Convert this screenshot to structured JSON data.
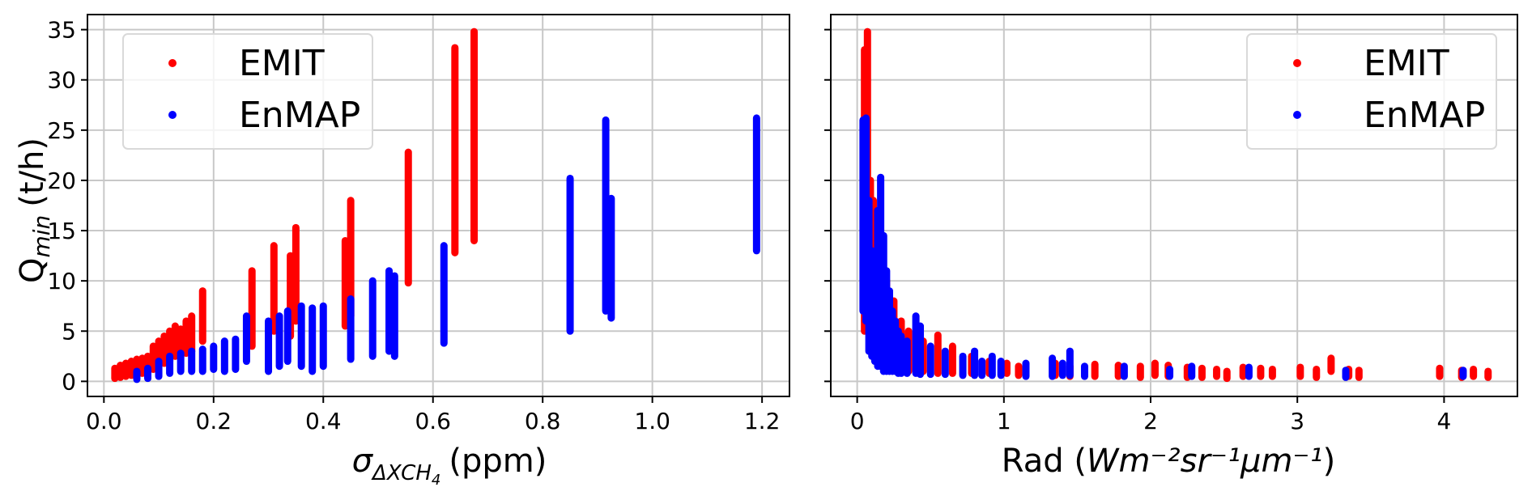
{
  "colors": {
    "emit": "#ff0000",
    "enmap": "#0000ff",
    "grid": "#c8c8c8",
    "frame": "#000000"
  },
  "chart_data": [
    {
      "type": "scatter",
      "ylabel_main": "Q",
      "ylabel_sub": "min",
      "ylabel_unit": "(t/h)",
      "xlabel_main": "σ",
      "xlabel_sub": "ΔXCH",
      "xlabel_subsub": "4",
      "xlabel_unit": "(ppm)",
      "xlim": [
        -0.03,
        1.25
      ],
      "ylim": [
        -1.5,
        36.5
      ],
      "xticks": [
        0.0,
        0.2,
        0.4,
        0.6,
        0.8,
        1.0,
        1.2
      ],
      "xtick_labels": [
        "0.0",
        "0.2",
        "0.4",
        "0.6",
        "0.8",
        "1.0",
        "1.2"
      ],
      "yticks": [
        0,
        5,
        10,
        15,
        20,
        25,
        30,
        35
      ],
      "ytick_labels": [
        "0",
        "5",
        "10",
        "15",
        "20",
        "25",
        "30",
        "35"
      ],
      "grid": true,
      "legend": "upper left",
      "series": [
        {
          "name": "EMIT",
          "segments": [
            [
              0.02,
              0.3,
              1.3
            ],
            [
              0.03,
              0.4,
              1.6
            ],
            [
              0.04,
              0.5,
              1.8
            ],
            [
              0.05,
              0.6,
              2.0
            ],
            [
              0.06,
              0.7,
              2.2
            ],
            [
              0.07,
              0.8,
              2.3
            ],
            [
              0.08,
              1.0,
              2.5
            ],
            [
              0.09,
              1.2,
              3.5
            ],
            [
              0.1,
              1.5,
              4.0
            ],
            [
              0.11,
              1.8,
              4.5
            ],
            [
              0.12,
              2.0,
              5.0
            ],
            [
              0.13,
              2.5,
              5.5
            ],
            [
              0.14,
              2.5,
              5.2
            ],
            [
              0.15,
              2.8,
              6.0
            ],
            [
              0.16,
              3.0,
              6.5
            ],
            [
              0.18,
              4.0,
              9.0
            ],
            [
              0.27,
              3.5,
              11.0
            ],
            [
              0.31,
              5.0,
              13.5
            ],
            [
              0.34,
              4.5,
              12.5
            ],
            [
              0.35,
              6.0,
              15.3
            ],
            [
              0.44,
              5.5,
              14.0
            ],
            [
              0.45,
              6.5,
              18.0
            ],
            [
              0.555,
              9.8,
              22.8
            ],
            [
              0.64,
              12.8,
              33.2
            ],
            [
              0.675,
              14.0,
              34.8
            ]
          ]
        },
        {
          "name": "EnMAP",
          "segments": [
            [
              0.06,
              0.2,
              1.0
            ],
            [
              0.08,
              0.3,
              1.3
            ],
            [
              0.1,
              0.5,
              2.0
            ],
            [
              0.12,
              0.8,
              2.5
            ],
            [
              0.14,
              1.0,
              2.8
            ],
            [
              0.16,
              1.0,
              3.0
            ],
            [
              0.18,
              1.0,
              3.2
            ],
            [
              0.2,
              1.2,
              3.5
            ],
            [
              0.22,
              1.0,
              4.0
            ],
            [
              0.24,
              1.2,
              4.2
            ],
            [
              0.26,
              2.0,
              6.5
            ],
            [
              0.3,
              1.0,
              6.0
            ],
            [
              0.32,
              1.5,
              6.5
            ],
            [
              0.335,
              2.0,
              7.0
            ],
            [
              0.36,
              1.5,
              7.5
            ],
            [
              0.38,
              1.0,
              7.3
            ],
            [
              0.4,
              1.5,
              7.5
            ],
            [
              0.45,
              2.2,
              8.2
            ],
            [
              0.49,
              2.5,
              10.0
            ],
            [
              0.52,
              3.0,
              11.0
            ],
            [
              0.53,
              2.5,
              10.5
            ],
            [
              0.62,
              3.8,
              13.5
            ],
            [
              0.85,
              5.0,
              20.2
            ],
            [
              0.915,
              7.0,
              26.0
            ],
            [
              0.925,
              6.3,
              18.2
            ],
            [
              1.19,
              13.0,
              26.2
            ]
          ]
        }
      ]
    },
    {
      "type": "scatter",
      "xlabel_main": "Rad (",
      "xlabel_math": "Wm⁻²sr⁻¹μm⁻¹",
      "xlabel_end": ")",
      "xlim": [
        -0.18,
        4.5
      ],
      "ylim": [
        -1.5,
        36.5
      ],
      "xticks": [
        0,
        1,
        2,
        3,
        4
      ],
      "xtick_labels": [
        "0",
        "1",
        "2",
        "3",
        "4"
      ],
      "yticks": [
        0,
        5,
        10,
        15,
        20,
        25,
        30,
        35
      ],
      "grid": true,
      "legend": "upper right",
      "series": [
        {
          "name": "EMIT",
          "segments": [
            [
              0.05,
              5.0,
              33.0
            ],
            [
              0.07,
              6.0,
              34.8
            ],
            [
              0.09,
              6.0,
              20.0
            ],
            [
              0.11,
              5.0,
              18.0
            ],
            [
              0.13,
              4.0,
              15.0
            ],
            [
              0.16,
              3.0,
              12.0
            ],
            [
              0.2,
              2.0,
              10.0
            ],
            [
              0.25,
              1.5,
              8.0
            ],
            [
              0.3,
              1.0,
              6.0
            ],
            [
              0.35,
              1.0,
              5.0
            ],
            [
              0.45,
              1.0,
              4.0
            ],
            [
              0.55,
              0.8,
              4.6
            ],
            [
              0.65,
              0.8,
              3.5
            ],
            [
              0.78,
              0.8,
              2.5
            ],
            [
              0.9,
              0.8,
              2.0
            ],
            [
              1.02,
              0.8,
              1.8
            ],
            [
              1.1,
              0.6,
              1.5
            ],
            [
              1.35,
              0.6,
              1.8
            ],
            [
              1.45,
              0.5,
              1.5
            ],
            [
              1.62,
              0.5,
              1.7
            ],
            [
              1.78,
              0.5,
              1.6
            ],
            [
              1.93,
              0.4,
              1.5
            ],
            [
              2.03,
              0.6,
              1.8
            ],
            [
              2.12,
              0.5,
              1.6
            ],
            [
              2.25,
              0.4,
              1.4
            ],
            [
              2.35,
              0.4,
              1.3
            ],
            [
              2.45,
              0.5,
              1.2
            ],
            [
              2.52,
              0.3,
              1.0
            ],
            [
              2.63,
              0.5,
              1.4
            ],
            [
              2.75,
              0.5,
              1.3
            ],
            [
              2.83,
              0.5,
              1.2
            ],
            [
              3.02,
              0.5,
              1.4
            ],
            [
              3.13,
              0.4,
              1.2
            ],
            [
              3.23,
              1.0,
              2.3
            ],
            [
              3.35,
              0.5,
              1.2
            ],
            [
              3.42,
              0.4,
              1.1
            ],
            [
              3.97,
              0.5,
              1.3
            ],
            [
              4.12,
              0.4,
              1.1
            ],
            [
              4.2,
              0.5,
              1.2
            ],
            [
              4.3,
              0.4,
              1.0
            ]
          ]
        },
        {
          "name": "EnMAP",
          "segments": [
            [
              0.04,
              7.0,
              26.0
            ],
            [
              0.06,
              6.0,
              26.2
            ],
            [
              0.08,
              3.0,
              18.0
            ],
            [
              0.1,
              2.5,
              13.0
            ],
            [
              0.12,
              2.0,
              12.5
            ],
            [
              0.14,
              1.5,
              17.0
            ],
            [
              0.16,
              1.5,
              20.3
            ],
            [
              0.18,
              1.0,
              14.5
            ],
            [
              0.2,
              1.0,
              11.0
            ],
            [
              0.22,
              1.0,
              9.0
            ],
            [
              0.24,
              1.0,
              7.0
            ],
            [
              0.26,
              1.0,
              6.0
            ],
            [
              0.28,
              0.8,
              5.0
            ],
            [
              0.3,
              0.8,
              4.5
            ],
            [
              0.34,
              0.8,
              4.0
            ],
            [
              0.4,
              0.8,
              6.5
            ],
            [
              0.43,
              0.7,
              5.5
            ],
            [
              0.5,
              0.7,
              3.5
            ],
            [
              0.6,
              0.7,
              3.0
            ],
            [
              0.72,
              0.6,
              2.5
            ],
            [
              0.8,
              0.6,
              3.0
            ],
            [
              0.85,
              0.6,
              2.0
            ],
            [
              0.92,
              0.6,
              2.5
            ],
            [
              0.98,
              0.6,
              2.0
            ],
            [
              1.15,
              0.5,
              1.8
            ],
            [
              1.33,
              0.5,
              2.3
            ],
            [
              1.4,
              0.6,
              1.8
            ],
            [
              1.45,
              0.6,
              3.0
            ],
            [
              1.55,
              0.5,
              1.5
            ],
            [
              1.82,
              0.5,
              1.5
            ],
            [
              2.13,
              0.5,
              1.2
            ],
            [
              2.28,
              0.5,
              1.5
            ],
            [
              2.67,
              0.5,
              1.4
            ],
            [
              3.33,
              0.4,
              1.1
            ],
            [
              4.13,
              0.5,
              1.1
            ]
          ]
        }
      ]
    }
  ]
}
